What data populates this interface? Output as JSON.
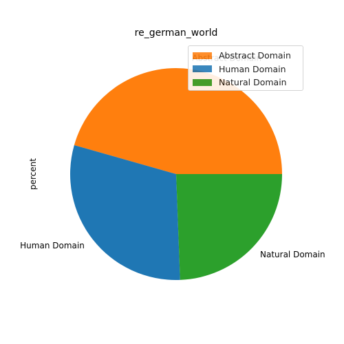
{
  "chart_data": {
    "type": "pie",
    "title": "re_german_world",
    "ylabel": "percent",
    "categories": [
      "Abstract Domain",
      "Human Domain",
      "Natural Domain"
    ],
    "values": [
      45.6,
      30.0,
      24.4
    ],
    "colors": [
      "#ff7f0e",
      "#1f77b4",
      "#2ca02c"
    ],
    "start_angle_deg": 0,
    "direction": "counterclockwise",
    "legend": {
      "placement": "top-right",
      "entries": [
        "Abstract Domain",
        "Human Domain",
        "Natural Domain"
      ]
    }
  }
}
